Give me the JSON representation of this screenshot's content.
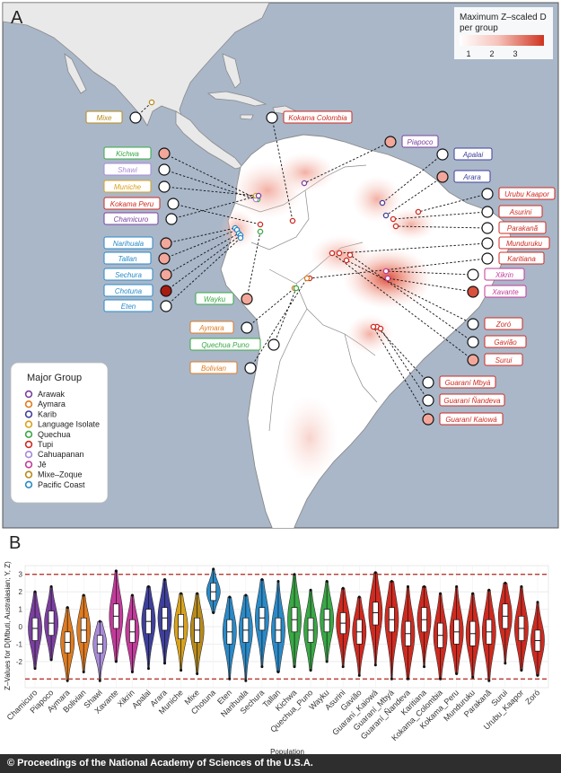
{
  "panel_a": {
    "label": "A",
    "heat_legend": {
      "title_line1": "Maximum Z–scaled D",
      "title_line2": "per group",
      "ticks": [
        "1",
        "2",
        "3"
      ]
    },
    "group_legend": {
      "title": "Major Group",
      "items": [
        {
          "name": "Arawak",
          "color": "#7b3fa0"
        },
        {
          "name": "Aymara",
          "color": "#e07b20"
        },
        {
          "name": "Karib",
          "color": "#3e3f9c"
        },
        {
          "name": "Language Isolate",
          "color": "#d9a21b"
        },
        {
          "name": "Quechua",
          "color": "#39a845"
        },
        {
          "name": "Tupi",
          "color": "#cf2a20"
        },
        {
          "name": "Cahuapanan",
          "color": "#a88ad8"
        },
        {
          "name": "Jê",
          "color": "#c23a9a"
        },
        {
          "name": "Mixe–Zoque",
          "color": "#b88a1a"
        },
        {
          "name": "Pacific Coast",
          "color": "#2a8ac8"
        }
      ]
    },
    "map_labels": [
      {
        "name": "Mixe",
        "group": "Mixe–Zoque",
        "z": 0.0
      },
      {
        "name": "Kokama Colombia",
        "group": "Tupi",
        "z": 0.0
      },
      {
        "name": "Kichwa",
        "group": "Quechua",
        "z": 1.5
      },
      {
        "name": "Shawi",
        "group": "Cahuapanan",
        "z": 0.0
      },
      {
        "name": "Muniche",
        "group": "Language Isolate",
        "z": 0.0
      },
      {
        "name": "Kokama Peru",
        "group": "Tupi",
        "z": 0.0
      },
      {
        "name": "Chamicuro",
        "group": "Arawak",
        "z": 0.0
      },
      {
        "name": "Narihuala",
        "group": "Pacific Coast",
        "z": 1.5
      },
      {
        "name": "Tallan",
        "group": "Pacific Coast",
        "z": 1.5
      },
      {
        "name": "Sechura",
        "group": "Pacific Coast",
        "z": 1.5
      },
      {
        "name": "Chotuna",
        "group": "Pacific Coast",
        "z": 3.5
      },
      {
        "name": "Eten",
        "group": "Pacific Coast",
        "z": 0.0
      },
      {
        "name": "Piapoco",
        "group": "Arawak",
        "z": 1.5
      },
      {
        "name": "Apalai",
        "group": "Karib",
        "z": 0.0
      },
      {
        "name": "Arara",
        "group": "Karib",
        "z": 1.5
      },
      {
        "name": "Urubu Kaapor",
        "group": "Tupi",
        "z": 0.0
      },
      {
        "name": "Asurini",
        "group": "Tupi",
        "z": 0.0
      },
      {
        "name": "Parakanã",
        "group": "Tupi",
        "z": 0.0
      },
      {
        "name": "Munduruku",
        "group": "Tupi",
        "z": 0.0
      },
      {
        "name": "Karitiana",
        "group": "Tupi",
        "z": 0.0
      },
      {
        "name": "Wayku",
        "group": "Quechua",
        "z": 1.5
      },
      {
        "name": "Xikrin",
        "group": "Jê",
        "z": 0.0
      },
      {
        "name": "Xavante",
        "group": "Jê",
        "z": 2.8
      },
      {
        "name": "Aymara",
        "group": "Aymara",
        "z": 0.0
      },
      {
        "name": "Quechua Puno",
        "group": "Quechua",
        "z": 0.0
      },
      {
        "name": "Bolivian",
        "group": "Aymara",
        "z": 0.0
      },
      {
        "name": "Zoró",
        "group": "Tupi",
        "z": 0.0
      },
      {
        "name": "Gavião",
        "group": "Tupi",
        "z": 0.0
      },
      {
        "name": "Surui",
        "group": "Tupi",
        "z": 1.5
      },
      {
        "name": "Guaraní Mbyá",
        "group": "Tupi",
        "z": 0.0
      },
      {
        "name": "Guaraní Ñandeva",
        "group": "Tupi",
        "z": 0.0
      },
      {
        "name": "Guaraní Kaiowá",
        "group": "Tupi",
        "z": 1.5
      }
    ]
  },
  "chart_data": {
    "type": "violin",
    "panel_label": "B",
    "title": "",
    "ylabel": "Z–Values for D(Mbuti, Australasian; Y, Z)",
    "xlabel": "Population",
    "ylim": [
      -3.5,
      3.5
    ],
    "yticks": [
      -2,
      -1,
      0,
      1,
      2,
      3
    ],
    "reference_lines": [
      3,
      -3
    ],
    "categories": [
      "Chamicuro",
      "Piapoco",
      "Aymara",
      "Bolivian",
      "Shawi",
      "Xavante",
      "Xikrin",
      "Apalai",
      "Arara",
      "Muniche",
      "Mixe",
      "Chotuna",
      "Eten",
      "Narihuala",
      "Sechura",
      "Tallan",
      "Kichwa",
      "Quechua_Puno",
      "Wayku",
      "Asurini",
      "Gavião",
      "Guaraní_Kaiowá",
      "Guaraní_Mbyá",
      "Guaraní_Ñandeva",
      "Karitiana",
      "Kokama_Colombia",
      "Kokama_Peru",
      "Munduruku",
      "Parakanã",
      "Surui",
      "Urubu_Kaapor",
      "Zoró"
    ],
    "groups": [
      "Arawak",
      "Arawak",
      "Aymara",
      "Aymara",
      "Cahuapanan",
      "Jê",
      "Jê",
      "Karib",
      "Karib",
      "Language Isolate",
      "Mixe–Zoque",
      "Pacific Coast",
      "Pacific Coast",
      "Pacific Coast",
      "Pacific Coast",
      "Pacific Coast",
      "Quechua",
      "Quechua",
      "Quechua",
      "Tupi",
      "Tupi",
      "Tupi",
      "Tupi",
      "Tupi",
      "Tupi",
      "Tupi",
      "Tupi",
      "Tupi",
      "Tupi",
      "Tupi",
      "Tupi",
      "Tupi"
    ],
    "medians": [
      -0.1,
      0.2,
      -0.9,
      -0.2,
      -1.0,
      0.6,
      -0.3,
      0.3,
      0.5,
      0.0,
      -0.2,
      2.0,
      -0.3,
      -0.2,
      0.5,
      -0.2,
      0.4,
      -0.2,
      0.4,
      0.2,
      -0.3,
      0.8,
      0.4,
      -0.4,
      0.4,
      -0.5,
      -0.3,
      -0.4,
      -0.3,
      0.6,
      -0.1,
      -0.8
    ],
    "mins": [
      -2.4,
      -1.9,
      -3.1,
      -2.6,
      -3.1,
      -2.0,
      -2.6,
      -2.4,
      -2.1,
      -2.5,
      -2.7,
      0.8,
      -3.0,
      -3.1,
      -2.3,
      -2.6,
      -2.3,
      -2.5,
      -2.0,
      -2.3,
      -2.8,
      -2.2,
      -3.0,
      -3.0,
      -2.3,
      -3.0,
      -2.7,
      -2.9,
      -3.1,
      -2.1,
      -2.5,
      -2.8
    ],
    "maxs": [
      2.0,
      2.3,
      1.1,
      1.8,
      0.3,
      3.2,
      1.8,
      2.3,
      2.7,
      1.9,
      1.9,
      3.3,
      1.7,
      1.8,
      2.7,
      2.6,
      3.0,
      2.1,
      2.6,
      2.2,
      1.7,
      3.1,
      2.6,
      2.3,
      2.3,
      1.9,
      2.3,
      1.9,
      2.1,
      2.5,
      2.3,
      1.4
    ],
    "iqr": [
      [
        -0.8,
        0.5
      ],
      [
        -0.5,
        0.9
      ],
      [
        -1.5,
        -0.3
      ],
      [
        -0.9,
        0.5
      ],
      [
        -1.5,
        -0.5
      ],
      [
        -0.1,
        1.3
      ],
      [
        -0.9,
        0.4
      ],
      [
        -0.4,
        1.0
      ],
      [
        -0.2,
        1.1
      ],
      [
        -0.7,
        0.7
      ],
      [
        -0.9,
        0.5
      ],
      [
        1.5,
        2.5
      ],
      [
        -1.0,
        0.4
      ],
      [
        -0.9,
        0.5
      ],
      [
        -0.2,
        1.1
      ],
      [
        -0.9,
        0.5
      ],
      [
        -0.3,
        1.1
      ],
      [
        -0.9,
        0.5
      ],
      [
        -0.3,
        1.0
      ],
      [
        -0.4,
        0.8
      ],
      [
        -1.0,
        0.4
      ],
      [
        0.1,
        1.4
      ],
      [
        -0.3,
        1.1
      ],
      [
        -1.1,
        0.3
      ],
      [
        -0.3,
        1.1
      ],
      [
        -1.2,
        0.2
      ],
      [
        -1.0,
        0.4
      ],
      [
        -1.1,
        0.3
      ],
      [
        -1.0,
        0.4
      ],
      [
        -0.1,
        1.3
      ],
      [
        -0.8,
        0.6
      ],
      [
        -1.4,
        -0.2
      ]
    ]
  },
  "footer": {
    "credit": "© Proceedings of the National Academy of Sciences of the U.S.A."
  }
}
